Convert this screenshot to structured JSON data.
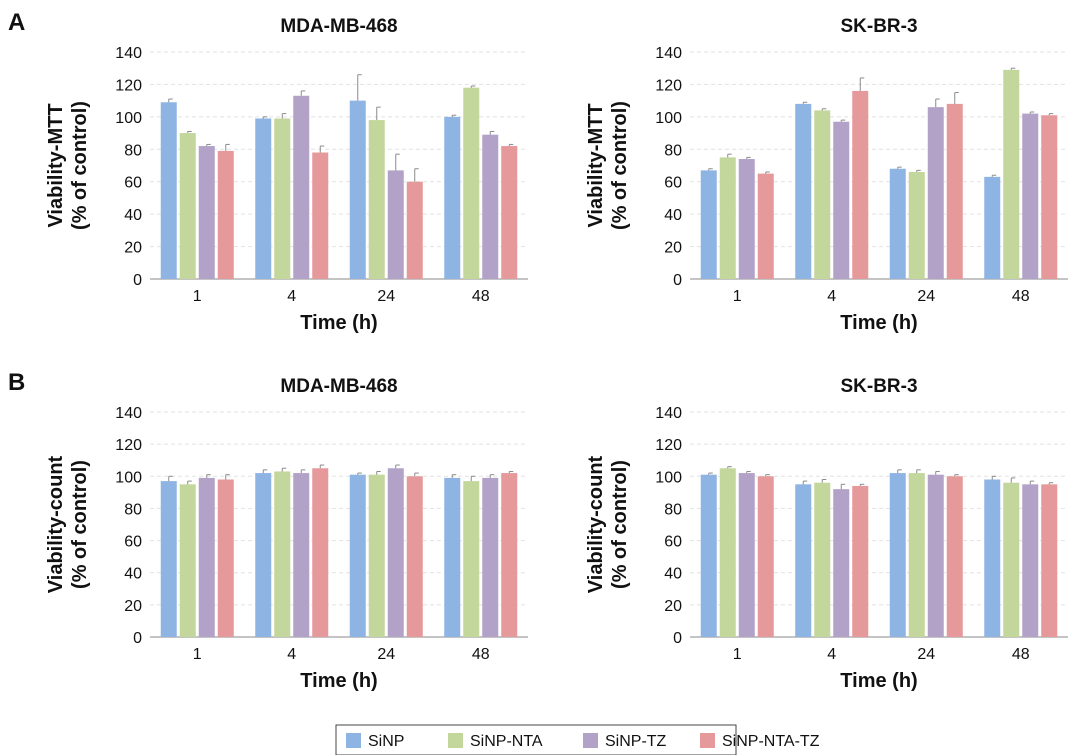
{
  "panel_labels": [
    "A",
    "B"
  ],
  "series_colors": [
    "#8eb4e3",
    "#c3d69b",
    "#b3a2c7",
    "#e6999a"
  ],
  "legend": [
    "SiNP",
    "SiNP-NTA",
    "SiNP-TZ",
    "SiNP-NTA-TZ"
  ],
  "chart_data": [
    {
      "type": "bar",
      "panel": "A",
      "title": "MDA-MB-468",
      "xlabel": "Time (h)",
      "ylabel": [
        "Viability-MTT",
        "(% of control)"
      ],
      "categories": [
        "1",
        "4",
        "24",
        "48"
      ],
      "ylim": [
        0,
        140
      ],
      "yticks": [
        0,
        20,
        40,
        60,
        80,
        100,
        120,
        140
      ],
      "grid": true,
      "series": [
        {
          "name": "SiNP",
          "values": [
            109,
            99,
            110,
            100
          ],
          "errors": [
            2,
            1,
            16,
            1
          ]
        },
        {
          "name": "SiNP-NTA",
          "values": [
            90,
            99,
            98,
            118
          ],
          "errors": [
            1,
            3,
            8,
            1
          ]
        },
        {
          "name": "SiNP-TZ",
          "values": [
            82,
            113,
            67,
            89
          ],
          "errors": [
            1,
            3,
            10,
            2
          ]
        },
        {
          "name": "SiNP-NTA-TZ",
          "values": [
            79,
            78,
            60,
            82
          ],
          "errors": [
            4,
            4,
            8,
            1
          ]
        }
      ]
    },
    {
      "type": "bar",
      "panel": "A",
      "title": "SK-BR-3",
      "xlabel": "Time (h)",
      "ylabel": [
        "Viability-MTT",
        "(% of control)"
      ],
      "categories": [
        "1",
        "4",
        "24",
        "48"
      ],
      "ylim": [
        0,
        140
      ],
      "yticks": [
        0,
        20,
        40,
        60,
        80,
        100,
        120,
        140
      ],
      "grid": true,
      "series": [
        {
          "name": "SiNP",
          "values": [
            67,
            108,
            68,
            63
          ],
          "errors": [
            1,
            1,
            1,
            1
          ]
        },
        {
          "name": "SiNP-NTA",
          "values": [
            75,
            104,
            66,
            129
          ],
          "errors": [
            2,
            1,
            1,
            1
          ]
        },
        {
          "name": "SiNP-TZ",
          "values": [
            74,
            97,
            106,
            102
          ],
          "errors": [
            1,
            1,
            5,
            1
          ]
        },
        {
          "name": "SiNP-NTA-TZ",
          "values": [
            65,
            116,
            108,
            101
          ],
          "errors": [
            1,
            8,
            7,
            1
          ]
        }
      ]
    },
    {
      "type": "bar",
      "panel": "B",
      "title": "MDA-MB-468",
      "xlabel": "Time (h)",
      "ylabel": [
        "Viability-count",
        "(% of control)"
      ],
      "categories": [
        "1",
        "4",
        "24",
        "48"
      ],
      "ylim": [
        0,
        140
      ],
      "yticks": [
        0,
        20,
        40,
        60,
        80,
        100,
        120,
        140
      ],
      "grid": true,
      "series": [
        {
          "name": "SiNP",
          "values": [
            97,
            102,
            101,
            99
          ],
          "errors": [
            3,
            2,
            1,
            2
          ]
        },
        {
          "name": "SiNP-NTA",
          "values": [
            95,
            103,
            101,
            97
          ],
          "errors": [
            2,
            2,
            2,
            3
          ]
        },
        {
          "name": "SiNP-TZ",
          "values": [
            99,
            102,
            105,
            99
          ],
          "errors": [
            2,
            2,
            2,
            2
          ]
        },
        {
          "name": "SiNP-NTA-TZ",
          "values": [
            98,
            105,
            100,
            102
          ],
          "errors": [
            3,
            2,
            2,
            1
          ]
        }
      ]
    },
    {
      "type": "bar",
      "panel": "B",
      "title": "SK-BR-3",
      "xlabel": "Time (h)",
      "ylabel": [
        "Viability-count",
        "(% of control)"
      ],
      "categories": [
        "1",
        "4",
        "24",
        "48"
      ],
      "ylim": [
        0,
        140
      ],
      "yticks": [
        0,
        20,
        40,
        60,
        80,
        100,
        120,
        140
      ],
      "grid": true,
      "series": [
        {
          "name": "SiNP",
          "values": [
            101,
            95,
            102,
            98
          ],
          "errors": [
            1,
            2,
            2,
            2
          ]
        },
        {
          "name": "SiNP-NTA",
          "values": [
            105,
            96,
            102,
            96
          ],
          "errors": [
            1,
            2,
            2,
            3
          ]
        },
        {
          "name": "SiNP-TZ",
          "values": [
            102,
            92,
            101,
            95
          ],
          "errors": [
            1,
            3,
            2,
            2
          ]
        },
        {
          "name": "SiNP-NTA-TZ",
          "values": [
            100,
            94,
            100,
            95
          ],
          "errors": [
            1,
            1,
            1,
            1
          ]
        }
      ]
    }
  ]
}
